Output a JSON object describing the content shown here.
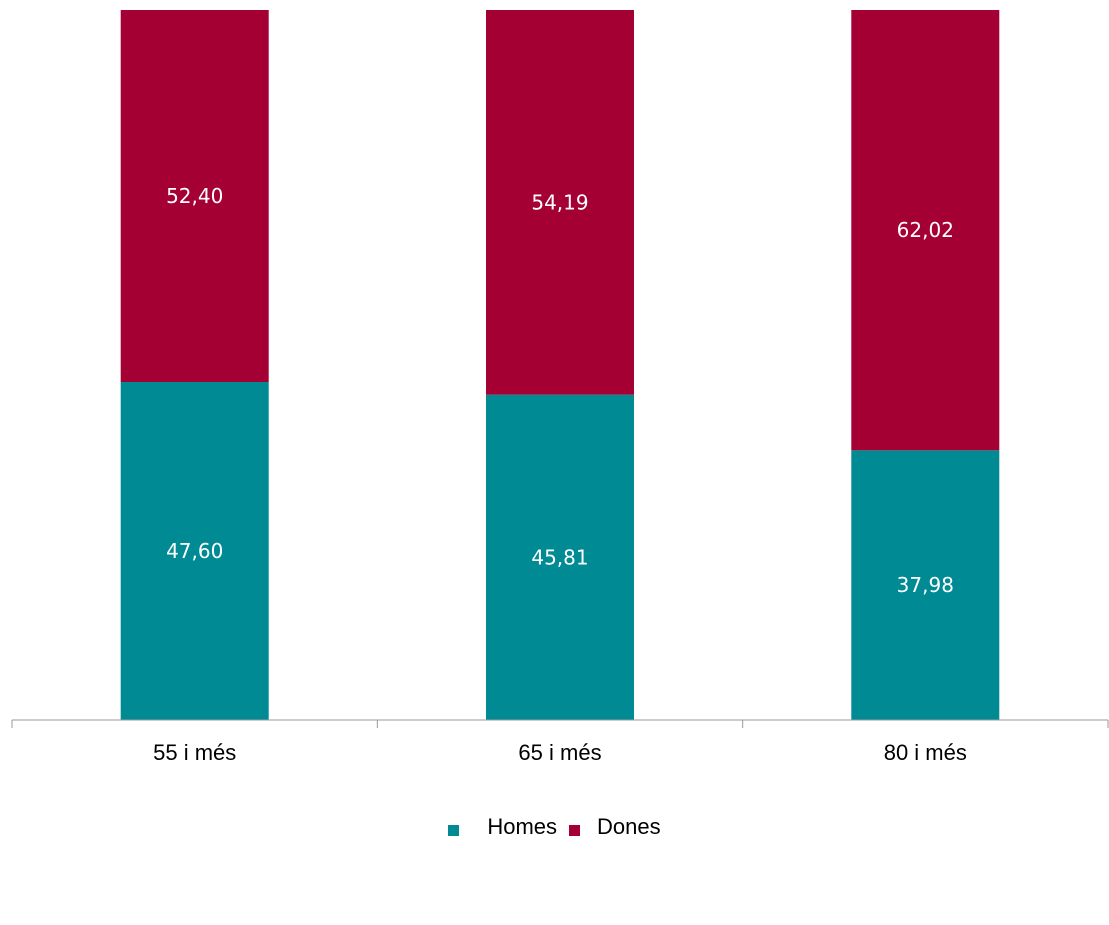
{
  "chart_data": {
    "type": "bar",
    "stacked": true,
    "categories": [
      "55 i més",
      "65 i més",
      "80 i més"
    ],
    "series": [
      {
        "name": "Homes",
        "values": [
          47.6,
          45.81,
          37.98
        ],
        "labels": [
          "47,60",
          "45,81",
          "37,98"
        ],
        "color": "#008A93"
      },
      {
        "name": "Dones",
        "values": [
          52.4,
          54.19,
          62.02
        ],
        "labels": [
          "52,40",
          "54,19",
          "62,02"
        ],
        "color": "#A50034"
      }
    ],
    "ylim": [
      0,
      100
    ],
    "grid": false,
    "legend_position": "bottom"
  }
}
